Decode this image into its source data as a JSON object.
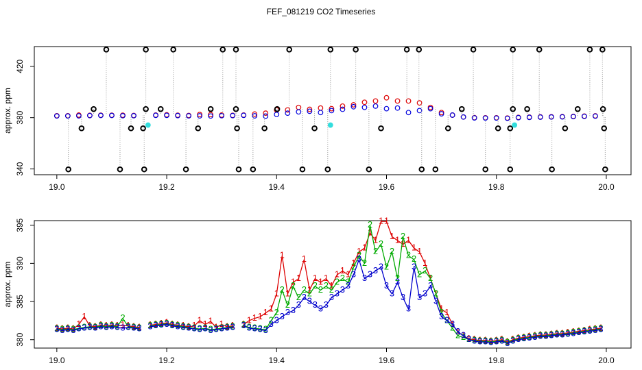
{
  "chart_data": [
    {
      "type": "scatter",
      "title": "FEF_081219  CO2 Timeseries",
      "ylabel": "approx. ppm",
      "xlim": [
        18.959,
        20.045
      ],
      "ylim": [
        335.5,
        435.4
      ],
      "xticks": [
        {
          "value": 19,
          "label": "19.0"
        },
        19.2,
        19.4,
        19.6,
        19.8,
        {
          "value": 20,
          "label": "20.0"
        }
      ],
      "yticks": [
        340,
        380,
        420
      ],
      "x": [
        19,
        19.02,
        19.04,
        19.06,
        19.08,
        19.1,
        19.12,
        19.14,
        19.16,
        19.18,
        19.2,
        19.22,
        19.24,
        19.26,
        19.28,
        19.3,
        19.32,
        19.34,
        19.36,
        19.38,
        19.4,
        19.42,
        19.44,
        19.46,
        19.48,
        19.5,
        19.52,
        19.54,
        19.56,
        19.58,
        19.6,
        19.62,
        19.64,
        19.66,
        19.68,
        19.7,
        19.72,
        19.74,
        19.76,
        19.78,
        19.8,
        19.82,
        19.84,
        19.86,
        19.88,
        19.9,
        19.92,
        19.94,
        19.96,
        19.98
      ],
      "series": [
        {
          "color": "#dd0000",
          "values": [
            381.5,
            381.5,
            382.0,
            381.8,
            381.9,
            381.9,
            381.9,
            381.7,
            null,
            382.0,
            382.2,
            381.9,
            381.7,
            382.5,
            382.4,
            382.0,
            381.8,
            382.0,
            382.8,
            383.5,
            386.0,
            386.0,
            388.0,
            386.5,
            387.5,
            387.0,
            389.0,
            390.0,
            392.0,
            393.0,
            395.5,
            393.0,
            393.0,
            391.5,
            388.0,
            384.0,
            382.0,
            380.5,
            380.0,
            379.9,
            379.9,
            379.7,
            380.2,
            380.4,
            380.6,
            380.7,
            380.8,
            381.0,
            381.2,
            381.4
          ]
        },
        {
          "color": "#0000dd",
          "values": [
            381.3,
            381.3,
            381.4,
            381.6,
            381.7,
            381.7,
            381.5,
            381.5,
            null,
            381.8,
            381.8,
            381.6,
            381.4,
            381.4,
            381.3,
            381.5,
            381.6,
            381.8,
            381.4,
            381.2,
            382.5,
            383.5,
            384.5,
            385.0,
            384.0,
            385.5,
            386.5,
            388.5,
            388.0,
            389.0,
            387.0,
            387.5,
            384.0,
            385.5,
            387.0,
            383.0,
            382.0,
            380.5,
            379.8,
            379.7,
            379.7,
            379.5,
            380.0,
            380.2,
            380.4,
            380.5,
            380.6,
            380.8,
            381.0,
            381.2
          ]
        },
        {
          "color": "#000000",
          "drop_lines": true,
          "x": [
            19.09,
            19.162,
            19.212,
            19.302,
            19.326,
            19.423,
            19.498,
            19.544,
            19.637,
            19.659,
            19.758,
            19.83,
            19.878,
            19.97,
            19.993,
            19.021,
            19.115,
            19.159,
            19.235,
            19.331,
            19.357,
            19.447,
            19.493,
            19.568,
            19.664,
            19.689,
            19.78,
            19.825,
            19.901,
            19.998,
            19.045,
            19.135,
            19.157,
            19.257,
            19.328,
            19.378,
            19.469,
            19.59,
            19.712,
            19.803,
            19.825,
            19.925,
            19.996,
            19.067,
            19.162,
            19.189,
            19.28,
            19.326,
            19.401,
            19.737,
            19.83,
            19.856,
            19.948,
            19.994
          ],
          "values": [
            433.1,
            433.1,
            433.1,
            433.1,
            433.1,
            433.1,
            433.1,
            433.1,
            433.1,
            433.1,
            433.1,
            433.1,
            433.1,
            433.1,
            433.1,
            339.7,
            339.7,
            339.7,
            339.7,
            339.7,
            339.7,
            339.7,
            339.7,
            339.7,
            339.7,
            339.7,
            339.7,
            339.7,
            339.7,
            339.7,
            371.7,
            371.7,
            371.7,
            371.7,
            371.7,
            371.7,
            371.7,
            371.7,
            371.7,
            371.7,
            371.7,
            371.7,
            371.7,
            386.7,
            386.7,
            386.7,
            386.7,
            386.7,
            386.7,
            386.7,
            386.7,
            386.7,
            386.7,
            386.7
          ]
        },
        {
          "color": "#33dddd",
          "filled": true,
          "x": [
            19.166,
            19.498,
            19.833
          ],
          "values": [
            374.2,
            374.2,
            374.2
          ]
        }
      ]
    },
    {
      "type": "line",
      "ylabel": "approx. ppm",
      "xlim": [
        18.959,
        20.045
      ],
      "ylim": [
        378.9,
        395.6
      ],
      "xticks": [
        {
          "value": 19,
          "label": "19.0"
        },
        19.2,
        19.4,
        19.6,
        19.8,
        {
          "value": 20,
          "label": "20.0"
        }
      ],
      "yticks": [
        380,
        385,
        390,
        395
      ],
      "x": [
        19,
        19.01,
        19.02,
        19.03,
        19.04,
        19.05,
        19.06,
        19.07,
        19.08,
        19.09,
        19.1,
        19.11,
        19.12,
        19.13,
        19.14,
        19.15,
        19.16,
        19.17,
        19.18,
        19.19,
        19.2,
        19.21,
        19.22,
        19.23,
        19.24,
        19.25,
        19.26,
        19.27,
        19.28,
        19.29,
        19.3,
        19.31,
        19.32,
        19.33,
        19.34,
        19.35,
        19.36,
        19.37,
        19.38,
        19.39,
        19.4,
        19.41,
        19.42,
        19.43,
        19.44,
        19.45,
        19.46,
        19.47,
        19.48,
        19.49,
        19.5,
        19.51,
        19.52,
        19.53,
        19.54,
        19.55,
        19.56,
        19.57,
        19.58,
        19.59,
        19.6,
        19.61,
        19.62,
        19.63,
        19.64,
        19.65,
        19.66,
        19.67,
        19.68,
        19.69,
        19.7,
        19.71,
        19.72,
        19.73,
        19.74,
        19.75,
        19.76,
        19.77,
        19.78,
        19.79,
        19.8,
        19.81,
        19.82,
        19.83,
        19.84,
        19.85,
        19.86,
        19.87,
        19.88,
        19.89,
        19.9,
        19.91,
        19.92,
        19.93,
        19.94,
        19.95,
        19.96,
        19.97,
        19.98,
        19.99
      ],
      "series": [
        {
          "color": "#dd0000",
          "marker": "1",
          "values": [
            381.5,
            381.4,
            381.5,
            381.4,
            382.0,
            383.0,
            381.8,
            381.7,
            381.9,
            381.8,
            381.9,
            381.8,
            381.9,
            381.8,
            381.7,
            381.6,
            null,
            381.9,
            382.0,
            382.1,
            382.2,
            382.0,
            381.9,
            381.8,
            381.7,
            381.8,
            382.5,
            382.0,
            382.4,
            381.6,
            382.0,
            381.7,
            381.8,
            null,
            382.0,
            382.5,
            382.8,
            383.0,
            383.5,
            384.0,
            386.0,
            391.0,
            386.0,
            387.5,
            388.0,
            390.5,
            386.5,
            388.0,
            387.5,
            388.0,
            387.0,
            388.5,
            389.0,
            388.5,
            390.0,
            391.5,
            392.0,
            394.0,
            393.0,
            395.5,
            395.5,
            393.5,
            393.0,
            392.5,
            393.0,
            392.0,
            391.5,
            390.0,
            388.0,
            386.0,
            384.0,
            383.5,
            382.0,
            381.0,
            380.5,
            380.1,
            380.0,
            379.9,
            379.9,
            379.8,
            379.9,
            380.0,
            379.7,
            380.0,
            380.2,
            380.3,
            380.4,
            380.5,
            380.6,
            380.6,
            380.7,
            380.8,
            380.8,
            380.9,
            381.0,
            381.1,
            381.2,
            381.3,
            381.4,
            381.5
          ]
        },
        {
          "color": "#00aa00",
          "marker": "2",
          "values": [
            381.4,
            381.3,
            381.4,
            381.3,
            381.5,
            381.6,
            381.7,
            381.6,
            381.8,
            381.7,
            381.8,
            381.7,
            382.8,
            381.7,
            381.6,
            381.5,
            null,
            381.8,
            381.9,
            382.0,
            382.1,
            381.9,
            381.8,
            381.7,
            381.6,
            381.5,
            381.4,
            381.5,
            381.3,
            381.4,
            381.5,
            381.6,
            381.7,
            null,
            381.9,
            381.6,
            381.5,
            381.4,
            381.3,
            382.5,
            383.5,
            386.5,
            384.5,
            387.0,
            385.5,
            386.5,
            386.0,
            387.0,
            386.5,
            387.0,
            386.5,
            387.5,
            388.0,
            387.5,
            389.5,
            391.0,
            390.0,
            395.0,
            391.5,
            392.5,
            389.5,
            391.5,
            388.0,
            393.5,
            391.0,
            390.5,
            388.5,
            389.0,
            388.0,
            386.0,
            383.5,
            382.5,
            381.5,
            380.5,
            380.3,
            380.0,
            379.9,
            379.8,
            379.8,
            379.7,
            379.8,
            379.9,
            379.6,
            379.9,
            380.1,
            380.2,
            380.3,
            380.4,
            380.5,
            380.5,
            380.6,
            380.7,
            380.7,
            380.8,
            380.9,
            381.0,
            381.1,
            381.2,
            381.3,
            381.4
          ]
        },
        {
          "color": "#0000cc",
          "marker": "3",
          "values": [
            381.3,
            381.2,
            381.3,
            381.2,
            381.4,
            381.5,
            381.6,
            381.5,
            381.7,
            381.6,
            381.7,
            381.6,
            381.5,
            381.6,
            381.5,
            381.4,
            null,
            381.7,
            381.8,
            381.9,
            382.0,
            381.8,
            381.7,
            381.6,
            381.5,
            381.4,
            381.3,
            381.4,
            381.2,
            381.3,
            381.4,
            381.5,
            381.6,
            null,
            381.8,
            381.5,
            381.4,
            381.3,
            381.2,
            382.0,
            382.5,
            383.0,
            383.5,
            383.8,
            384.5,
            385.5,
            385.0,
            384.5,
            384.0,
            384.5,
            385.5,
            386.0,
            386.5,
            387.0,
            388.5,
            390.5,
            388.0,
            388.5,
            389.0,
            389.5,
            387.0,
            386.0,
            387.5,
            385.5,
            384.0,
            389.5,
            385.5,
            386.0,
            387.0,
            385.0,
            383.0,
            382.5,
            382.0,
            381.0,
            380.5,
            380.0,
            379.8,
            379.7,
            379.7,
            379.6,
            379.7,
            379.8,
            379.5,
            379.8,
            380.0,
            380.1,
            380.2,
            380.3,
            380.4,
            380.4,
            380.5,
            380.6,
            380.6,
            380.7,
            380.8,
            380.9,
            381.0,
            381.1,
            381.2,
            381.3
          ]
        }
      ]
    }
  ]
}
